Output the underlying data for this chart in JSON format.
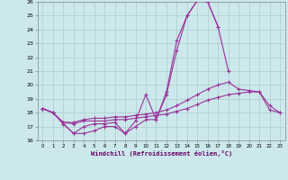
{
  "xlabel": "Windchill (Refroidissement éolien,°C)",
  "background_color": "#cce8ec",
  "grid_color": "#aacccc",
  "line_color": "#993399",
  "xlim": [
    -0.5,
    23.5
  ],
  "ylim": [
    16,
    26
  ],
  "xticks": [
    0,
    1,
    2,
    3,
    4,
    5,
    6,
    7,
    8,
    9,
    10,
    11,
    12,
    13,
    14,
    15,
    16,
    17,
    18,
    19,
    20,
    21,
    22,
    23
  ],
  "yticks": [
    16,
    17,
    18,
    19,
    20,
    21,
    22,
    23,
    24,
    25,
    26
  ],
  "lines": [
    {
      "x": [
        0,
        1,
        2,
        3,
        4,
        5,
        6,
        7,
        8,
        9,
        10,
        11,
        12,
        13,
        14,
        15,
        16,
        17,
        18,
        19,
        20,
        21
      ],
      "y": [
        18.3,
        18.0,
        17.2,
        16.5,
        16.5,
        16.7,
        17.0,
        17.0,
        16.5,
        17.0,
        17.5,
        17.5,
        19.3,
        22.5,
        25.0,
        26.1,
        26.0,
        24.2,
        21.0,
        null,
        null,
        null
      ]
    },
    {
      "x": [
        0,
        1,
        2,
        3,
        4,
        5,
        6,
        7,
        8,
        9,
        10,
        11,
        12,
        13,
        14,
        15,
        16,
        17,
        18,
        19,
        20,
        21,
        22,
        23
      ],
      "y": [
        18.3,
        18.0,
        17.2,
        16.5,
        17.0,
        17.2,
        17.2,
        17.3,
        16.5,
        17.4,
        19.3,
        17.5,
        19.5,
        23.2,
        25.0,
        26.1,
        26.0,
        24.2,
        null,
        null,
        null,
        null,
        null,
        null
      ]
    },
    {
      "x": [
        0,
        1,
        2,
        3,
        4,
        5,
        6,
        7,
        8,
        9,
        10,
        11,
        12,
        13,
        14,
        15,
        16,
        17,
        18,
        19,
        20,
        21,
        22,
        23
      ],
      "y": [
        18.3,
        18.0,
        17.3,
        17.3,
        17.5,
        17.6,
        17.6,
        17.7,
        17.7,
        17.8,
        17.9,
        18.0,
        18.2,
        18.5,
        18.9,
        19.3,
        19.7,
        20.0,
        20.2,
        19.7,
        19.6,
        19.5,
        18.5,
        18.0
      ]
    },
    {
      "x": [
        0,
        1,
        2,
        3,
        4,
        5,
        6,
        7,
        8,
        9,
        10,
        11,
        12,
        13,
        14,
        15,
        16,
        17,
        18,
        19,
        20,
        21,
        22,
        23
      ],
      "y": [
        18.3,
        18.0,
        17.3,
        17.2,
        17.4,
        17.4,
        17.4,
        17.5,
        17.5,
        17.6,
        17.7,
        17.8,
        17.9,
        18.1,
        18.3,
        18.6,
        18.9,
        19.1,
        19.3,
        19.4,
        19.5,
        19.5,
        18.2,
        18.0
      ]
    }
  ]
}
